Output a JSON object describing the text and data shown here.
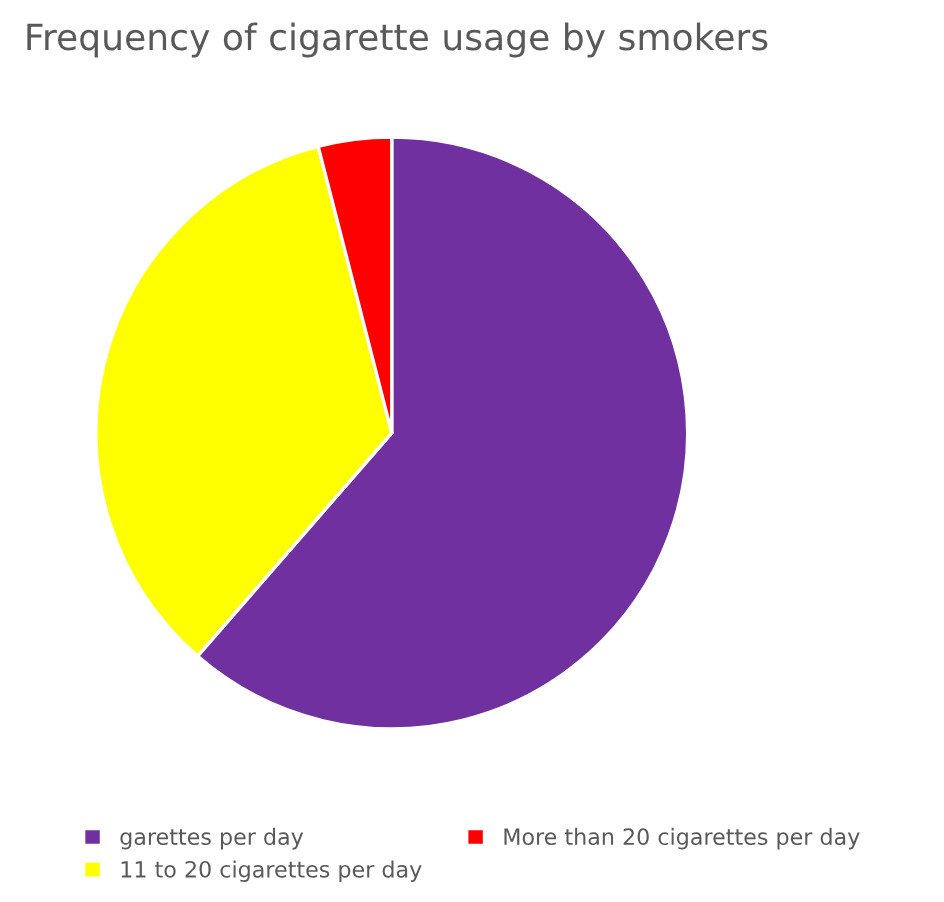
{
  "chart_data": {
    "type": "pie",
    "title": "Frequency of cigarette usage by smokers",
    "categories": [
      "garettes per day",
      "11 to 20 cigarettes per day",
      "More than 20 cigarettes per day"
    ],
    "values": [
      61.4,
      34.6,
      4.0
    ],
    "colors": [
      "#7030a0",
      "#ffff00",
      "#ff0000"
    ],
    "legend": "bottom"
  }
}
